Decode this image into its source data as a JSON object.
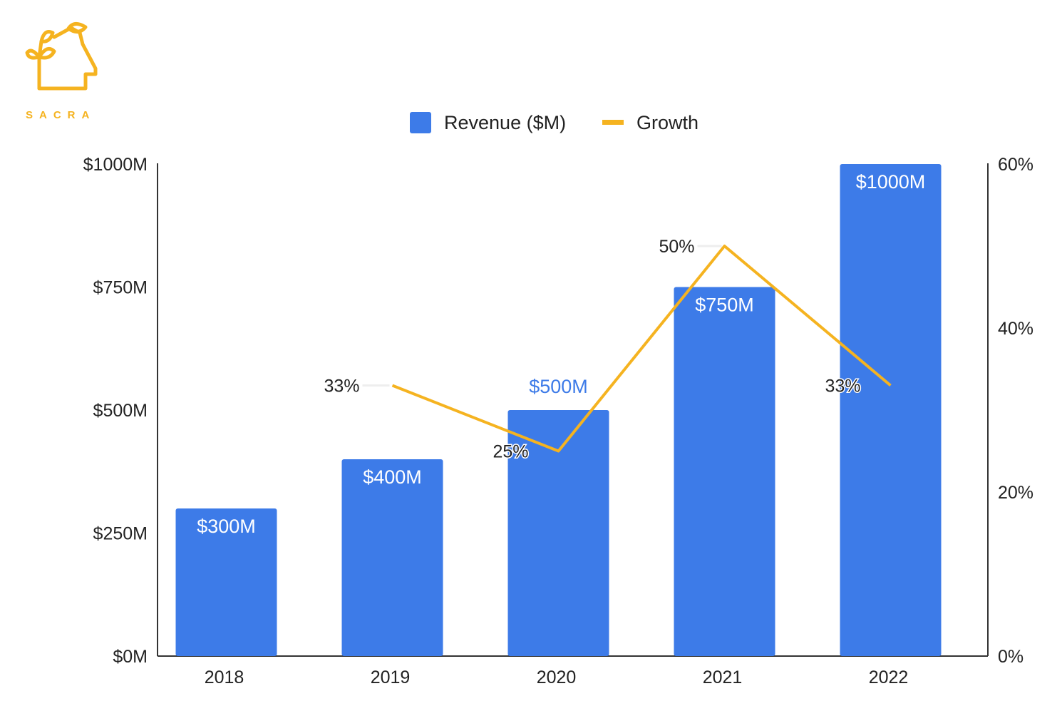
{
  "brand": {
    "name": "SACRA",
    "color": "#F5B320",
    "logo_icon": "sacra-house-sprout-icon"
  },
  "colors": {
    "bar": "#3D7BE8",
    "line": "#F5B320",
    "axis": "#333333",
    "text": "#222222"
  },
  "chart_data": {
    "type": "bar",
    "categories": [
      "2018",
      "2019",
      "2020",
      "2021",
      "2022"
    ],
    "series": [
      {
        "name": "Revenue ($M)",
        "type": "bar",
        "axis": "left",
        "values": [
          300,
          400,
          500,
          750,
          1000
        ],
        "labels": [
          "$300M",
          "$400M",
          "$500M",
          "$750M",
          "$1000M"
        ]
      },
      {
        "name": "Growth",
        "type": "line",
        "axis": "right",
        "values": [
          null,
          33,
          25,
          50,
          33
        ],
        "labels": [
          "",
          "33%",
          "25%",
          "50%",
          "33%"
        ]
      }
    ],
    "y_left": {
      "ylim": [
        0,
        1000
      ],
      "ticks": [
        0,
        250,
        500,
        750,
        1000
      ],
      "tick_labels": [
        "$0M",
        "$250M",
        "$500M",
        "$750M",
        "$1000M"
      ]
    },
    "y_right": {
      "ylim": [
        0,
        60
      ],
      "ticks": [
        0,
        20,
        40,
        60
      ],
      "tick_labels": [
        "0%",
        "20%",
        "40%",
        "60%"
      ]
    },
    "legend": {
      "placement": "top-center",
      "entries": [
        "Revenue ($M)",
        "Growth"
      ]
    },
    "grid": false
  }
}
